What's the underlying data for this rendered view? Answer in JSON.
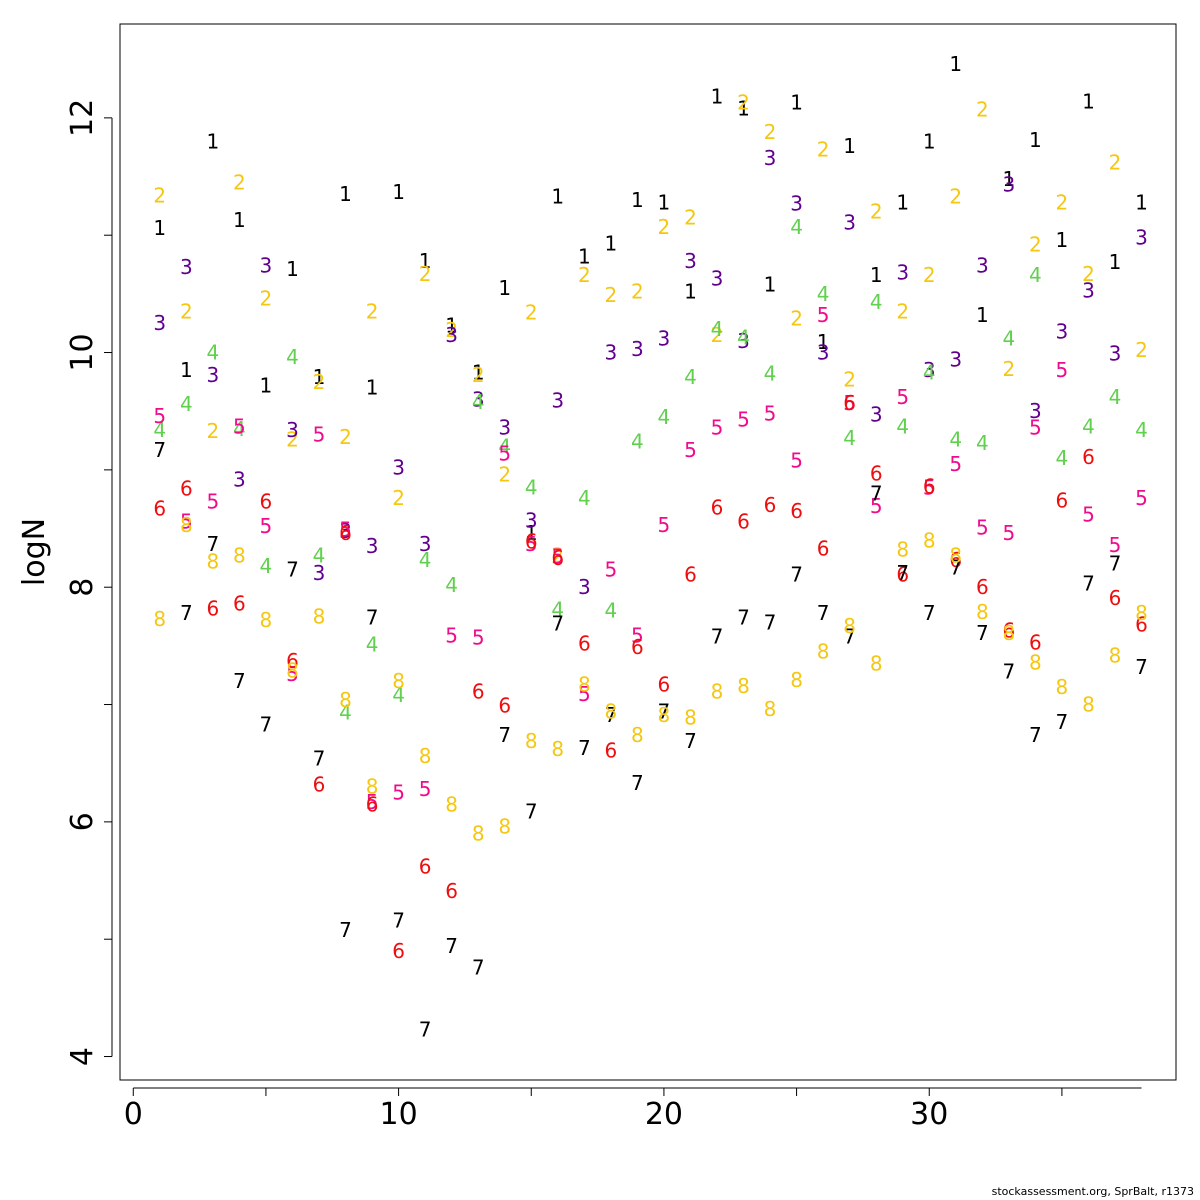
{
  "chart_data": {
    "type": "scatter",
    "ylabel": "logN",
    "xlabel": "",
    "xlim": [
      -0.5,
      39.3
    ],
    "ylim": [
      3.8,
      12.8
    ],
    "xticks": [
      0,
      10,
      20,
      30
    ],
    "yticks": [
      4,
      6,
      8,
      10,
      12
    ],
    "grid": false,
    "marker": "age label digit",
    "colors": {
      "1": "#000000",
      "2": "#f5c710",
      "3": "#61008f",
      "4": "#61d04f",
      "5": "#f00b8b",
      "6": "#ee0e0e",
      "7": "#000000",
      "8": "#f5c710"
    },
    "series": [
      {
        "name": "1",
        "values": [
          11.06,
          9.85,
          11.8,
          11.13,
          9.72,
          10.71,
          9.79,
          11.35,
          9.7,
          11.37,
          10.78,
          10.23,
          9.83,
          10.55,
          8.46,
          11.33,
          10.82,
          10.93,
          11.3,
          11.28,
          10.52,
          12.18,
          12.08,
          10.58,
          12.13,
          10.09,
          11.76,
          10.66,
          11.28,
          11.8,
          12.46,
          10.32,
          11.48,
          11.81,
          10.96,
          12.14,
          10.77,
          11.28
        ]
      },
      {
        "name": "2",
        "values": [
          11.34,
          10.35,
          9.33,
          11.45,
          10.46,
          9.26,
          9.75,
          9.28,
          10.35,
          8.76,
          10.67,
          10.19,
          9.81,
          8.96,
          10.34,
          8.27,
          10.66,
          10.49,
          10.52,
          11.07,
          11.15,
          10.15,
          12.13,
          11.88,
          10.29,
          11.73,
          9.77,
          11.2,
          10.35,
          10.66,
          11.33,
          12.07,
          9.86,
          10.92,
          11.28,
          10.67,
          11.62,
          10.02
        ]
      },
      {
        "name": "3",
        "values": [
          10.25,
          10.73,
          9.81,
          8.92,
          10.74,
          9.34,
          8.12,
          8.48,
          8.35,
          9.02,
          8.37,
          10.15,
          9.6,
          9.36,
          8.57,
          9.59,
          8.0,
          10.0,
          10.03,
          10.12,
          10.78,
          10.63,
          10.1,
          11.66,
          11.27,
          10.0,
          11.11,
          9.47,
          10.68,
          9.85,
          9.94,
          10.74,
          11.43,
          9.5,
          10.18,
          10.53,
          9.99,
          10.98
        ]
      },
      {
        "name": "4",
        "values": [
          9.34,
          9.56,
          10.0,
          9.35,
          8.18,
          9.96,
          8.27,
          6.93,
          7.51,
          7.08,
          8.23,
          8.02,
          9.58,
          9.2,
          8.85,
          7.81,
          8.76,
          7.8,
          9.24,
          9.45,
          9.79,
          10.2,
          10.13,
          9.82,
          11.07,
          10.5,
          9.27,
          10.43,
          9.37,
          9.83,
          9.26,
          9.23,
          10.12,
          10.66,
          9.1,
          9.37,
          9.62,
          9.34
        ]
      },
      {
        "name": "5",
        "values": [
          9.46,
          8.56,
          8.73,
          9.37,
          8.52,
          7.26,
          9.3,
          8.49,
          6.17,
          6.25,
          6.28,
          7.59,
          7.57,
          9.14,
          8.37,
          8.26,
          7.09,
          8.15,
          7.59,
          8.53,
          9.17,
          9.36,
          9.43,
          9.48,
          9.08,
          10.32,
          9.57,
          8.69,
          9.62,
          8.85,
          9.05,
          8.51,
          8.46,
          9.36,
          9.85,
          8.62,
          8.36,
          8.76
        ]
      },
      {
        "name": "6",
        "values": [
          8.67,
          8.84,
          7.82,
          7.86,
          8.73,
          7.37,
          6.32,
          8.46,
          6.15,
          4.9,
          5.62,
          5.41,
          7.11,
          6.99,
          8.39,
          8.25,
          7.52,
          6.61,
          7.49,
          7.17,
          8.11,
          8.68,
          8.56,
          8.7,
          8.65,
          8.33,
          9.57,
          8.97,
          8.11,
          8.86,
          8.23,
          8.0,
          7.63,
          7.53,
          8.74,
          9.11,
          7.91,
          7.68
        ]
      },
      {
        "name": "7",
        "values": [
          9.17,
          7.78,
          8.37,
          7.2,
          6.83,
          8.15,
          6.54,
          5.08,
          7.74,
          5.16,
          4.23,
          4.94,
          4.76,
          6.74,
          6.09,
          7.69,
          6.63,
          6.91,
          6.33,
          6.94,
          6.69,
          7.58,
          7.74,
          7.7,
          8.11,
          7.78,
          7.58,
          8.8,
          8.12,
          7.78,
          8.17,
          7.61,
          7.28,
          6.74,
          6.85,
          8.03,
          8.2,
          7.32
        ]
      },
      {
        "name": "8",
        "values": [
          7.73,
          8.53,
          8.22,
          8.27,
          7.72,
          7.29,
          7.75,
          7.04,
          6.3,
          7.2,
          6.56,
          6.15,
          5.9,
          5.96,
          6.69,
          6.62,
          7.17,
          6.94,
          6.74,
          6.91,
          6.89,
          7.11,
          7.16,
          6.96,
          7.21,
          7.45,
          7.67,
          7.35,
          8.32,
          8.4,
          8.27,
          7.79,
          7.61,
          7.36,
          7.15,
          7.0,
          7.42,
          7.78
        ]
      }
    ]
  },
  "footer": {
    "credit": "stockassessment.org, SprBalt, r1373"
  }
}
